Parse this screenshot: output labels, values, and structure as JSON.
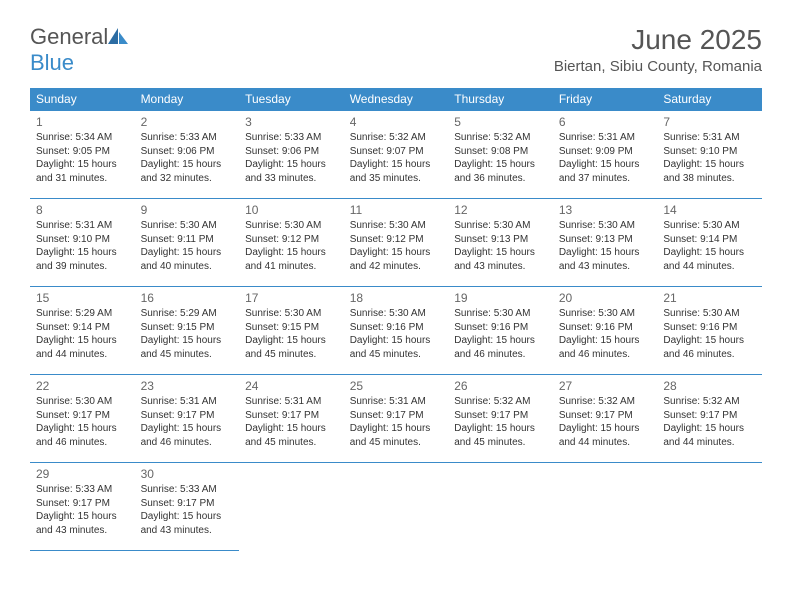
{
  "logo": {
    "general": "General",
    "blue": "Blue"
  },
  "title": "June 2025",
  "location": "Biertan, Sibiu County, Romania",
  "colors": {
    "header_bg": "#3a8bc9",
    "header_text": "#ffffff",
    "border": "#3a8bc9",
    "text": "#333333",
    "title_text": "#555555",
    "daynum_text": "#666666",
    "background": "#ffffff"
  },
  "weekdays": [
    "Sunday",
    "Monday",
    "Tuesday",
    "Wednesday",
    "Thursday",
    "Friday",
    "Saturday"
  ],
  "days": [
    {
      "n": 1,
      "sr": "5:34 AM",
      "ss": "9:05 PM",
      "dl": "15 hours and 31 minutes."
    },
    {
      "n": 2,
      "sr": "5:33 AM",
      "ss": "9:06 PM",
      "dl": "15 hours and 32 minutes."
    },
    {
      "n": 3,
      "sr": "5:33 AM",
      "ss": "9:06 PM",
      "dl": "15 hours and 33 minutes."
    },
    {
      "n": 4,
      "sr": "5:32 AM",
      "ss": "9:07 PM",
      "dl": "15 hours and 35 minutes."
    },
    {
      "n": 5,
      "sr": "5:32 AM",
      "ss": "9:08 PM",
      "dl": "15 hours and 36 minutes."
    },
    {
      "n": 6,
      "sr": "5:31 AM",
      "ss": "9:09 PM",
      "dl": "15 hours and 37 minutes."
    },
    {
      "n": 7,
      "sr": "5:31 AM",
      "ss": "9:10 PM",
      "dl": "15 hours and 38 minutes."
    },
    {
      "n": 8,
      "sr": "5:31 AM",
      "ss": "9:10 PM",
      "dl": "15 hours and 39 minutes."
    },
    {
      "n": 9,
      "sr": "5:30 AM",
      "ss": "9:11 PM",
      "dl": "15 hours and 40 minutes."
    },
    {
      "n": 10,
      "sr": "5:30 AM",
      "ss": "9:12 PM",
      "dl": "15 hours and 41 minutes."
    },
    {
      "n": 11,
      "sr": "5:30 AM",
      "ss": "9:12 PM",
      "dl": "15 hours and 42 minutes."
    },
    {
      "n": 12,
      "sr": "5:30 AM",
      "ss": "9:13 PM",
      "dl": "15 hours and 43 minutes."
    },
    {
      "n": 13,
      "sr": "5:30 AM",
      "ss": "9:13 PM",
      "dl": "15 hours and 43 minutes."
    },
    {
      "n": 14,
      "sr": "5:30 AM",
      "ss": "9:14 PM",
      "dl": "15 hours and 44 minutes."
    },
    {
      "n": 15,
      "sr": "5:29 AM",
      "ss": "9:14 PM",
      "dl": "15 hours and 44 minutes."
    },
    {
      "n": 16,
      "sr": "5:29 AM",
      "ss": "9:15 PM",
      "dl": "15 hours and 45 minutes."
    },
    {
      "n": 17,
      "sr": "5:30 AM",
      "ss": "9:15 PM",
      "dl": "15 hours and 45 minutes."
    },
    {
      "n": 18,
      "sr": "5:30 AM",
      "ss": "9:16 PM",
      "dl": "15 hours and 45 minutes."
    },
    {
      "n": 19,
      "sr": "5:30 AM",
      "ss": "9:16 PM",
      "dl": "15 hours and 46 minutes."
    },
    {
      "n": 20,
      "sr": "5:30 AM",
      "ss": "9:16 PM",
      "dl": "15 hours and 46 minutes."
    },
    {
      "n": 21,
      "sr": "5:30 AM",
      "ss": "9:16 PM",
      "dl": "15 hours and 46 minutes."
    },
    {
      "n": 22,
      "sr": "5:30 AM",
      "ss": "9:17 PM",
      "dl": "15 hours and 46 minutes."
    },
    {
      "n": 23,
      "sr": "5:31 AM",
      "ss": "9:17 PM",
      "dl": "15 hours and 46 minutes."
    },
    {
      "n": 24,
      "sr": "5:31 AM",
      "ss": "9:17 PM",
      "dl": "15 hours and 45 minutes."
    },
    {
      "n": 25,
      "sr": "5:31 AM",
      "ss": "9:17 PM",
      "dl": "15 hours and 45 minutes."
    },
    {
      "n": 26,
      "sr": "5:32 AM",
      "ss": "9:17 PM",
      "dl": "15 hours and 45 minutes."
    },
    {
      "n": 27,
      "sr": "5:32 AM",
      "ss": "9:17 PM",
      "dl": "15 hours and 44 minutes."
    },
    {
      "n": 28,
      "sr": "5:32 AM",
      "ss": "9:17 PM",
      "dl": "15 hours and 44 minutes."
    },
    {
      "n": 29,
      "sr": "5:33 AM",
      "ss": "9:17 PM",
      "dl": "15 hours and 43 minutes."
    },
    {
      "n": 30,
      "sr": "5:33 AM",
      "ss": "9:17 PM",
      "dl": "15 hours and 43 minutes."
    }
  ],
  "labels": {
    "sunrise": "Sunrise:",
    "sunset": "Sunset:",
    "daylight": "Daylight:"
  },
  "layout": {
    "first_day_offset": 0,
    "total_cells": 35
  }
}
